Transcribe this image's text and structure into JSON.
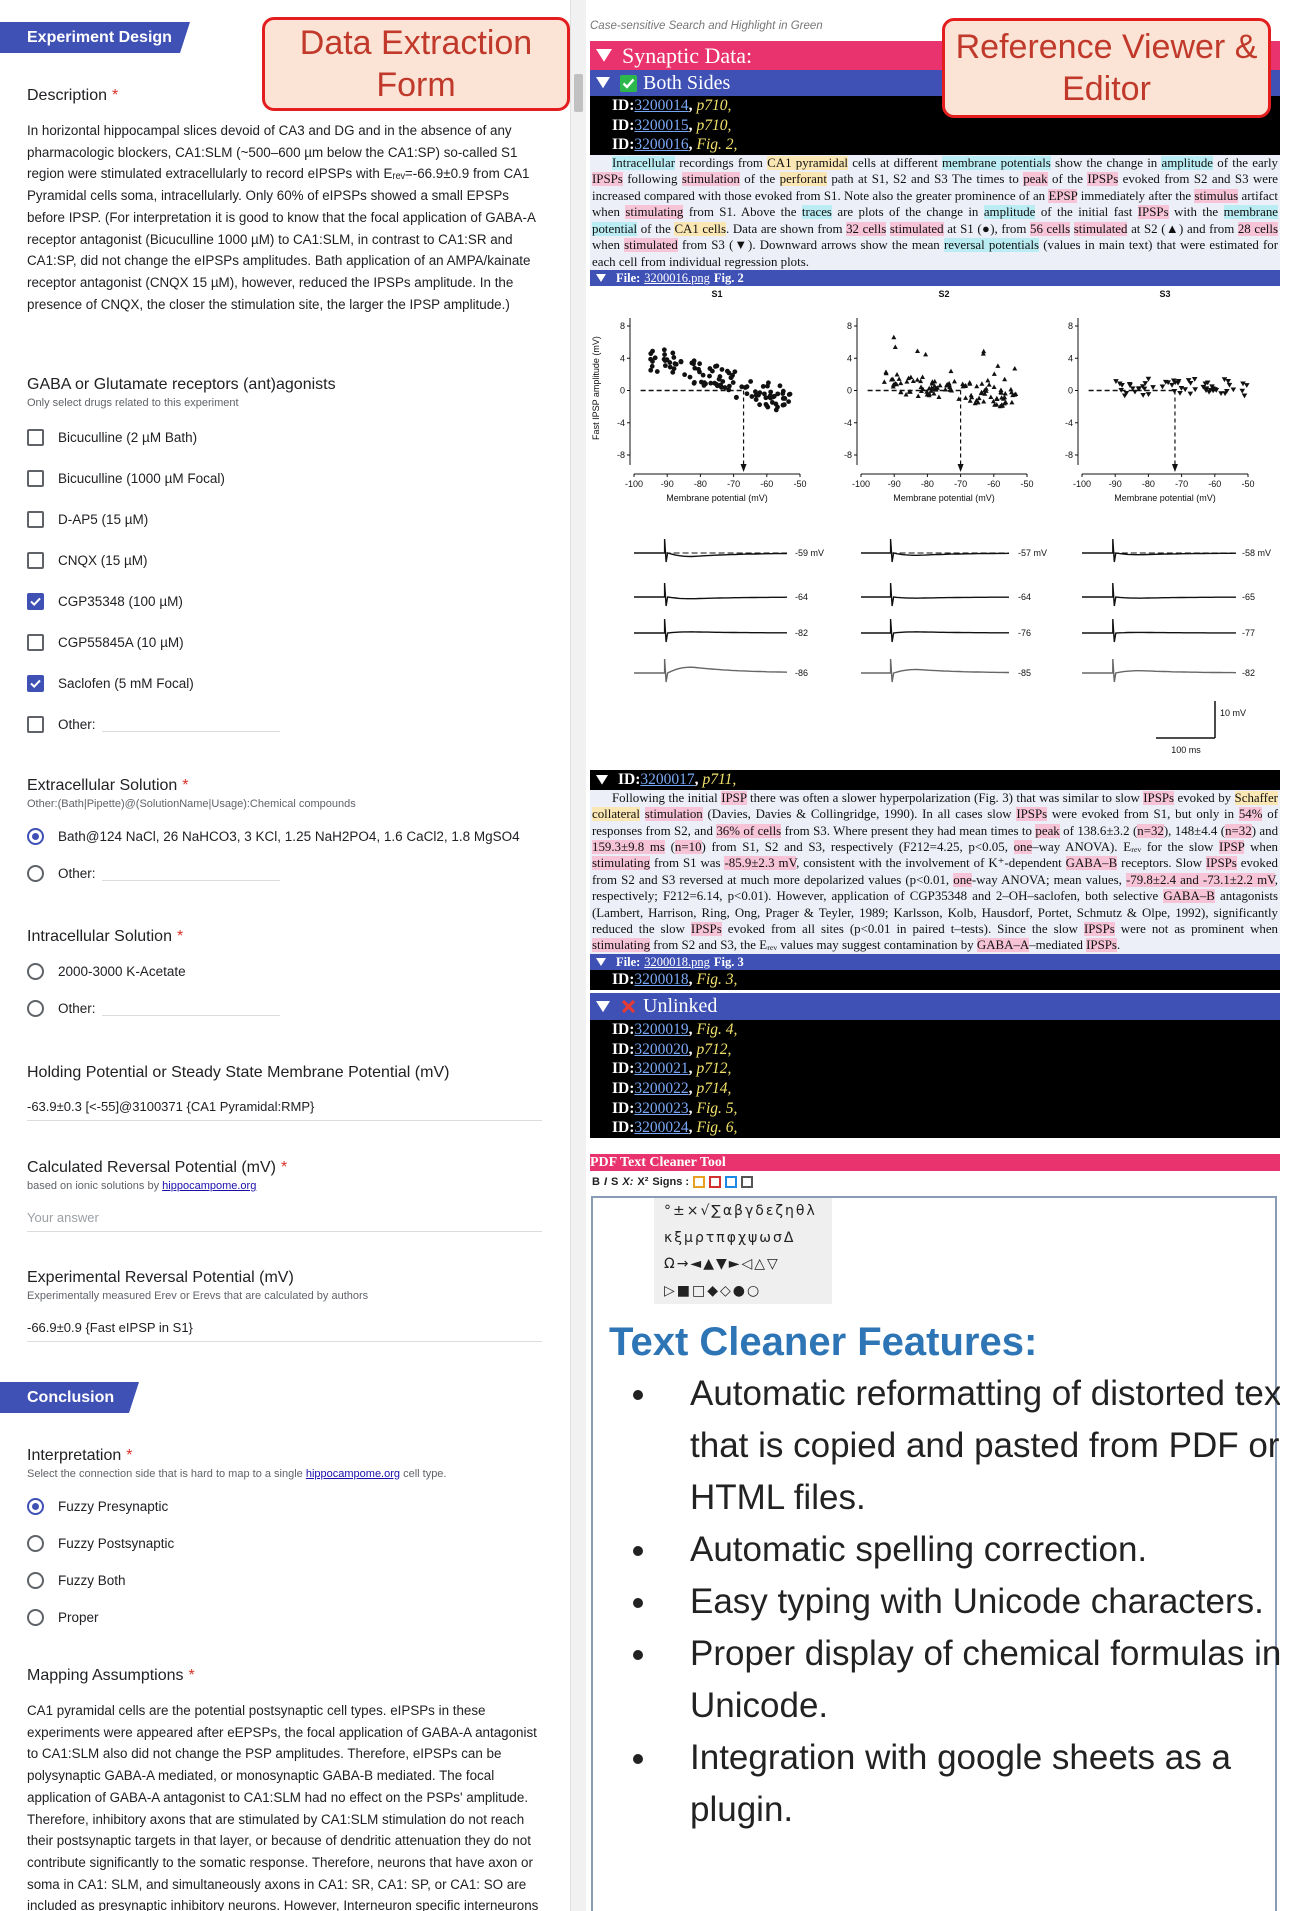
{
  "callouts": {
    "form": "Data Extraction Form",
    "viewer": "Reference Viewer & Editor"
  },
  "form": {
    "sections": [
      {
        "header": "Experiment Design",
        "items": [
          {
            "title": "Description",
            "required": "*",
            "text": "In horizontal hippocampal slices devoid of CA3 and DG and in the absence of any pharmacologic blockers, CA1:SLM (~500–600 µm below the CA1:SP) so-called S1 region were stimulated extracellularly to record eIPSPs with Eᵣₑᵥ=-66.9±0.9 from CA1 Pyramidal cells soma, intracellularly. Only 60% of eIPSPs showed a small EPSPs before IPSP. (For interpretation it is good to know that the focal application of GABA-A receptor antagonist (Bicuculline 1000 µM) to CA1:SLM, in contrast to CA1:SR and CA1:SP, did not change the eIPSPs amplitudes. Bath application of an AMPA/kainate receptor antagonist (CNQX 15 µM), however, reduced the IPSPs amplitude. In the presence of CNQX, the closer the stimulation site, the larger the IPSP amplitude.)"
          },
          {
            "title": "GABA or Glutamate receptors (ant)agonists",
            "hint": [
              "Only select drugs related to this experiment"
            ],
            "control": "checkbox",
            "options": [
              {
                "label": "Bicuculline (2 µM Bath)"
              },
              {
                "label": "Bicuculline (1000 µM Focal)"
              },
              {
                "label": "D-AP5 (15 µM)"
              },
              {
                "label": "CNQX (15 µM)"
              },
              {
                "label": "CGP35348 (100 µM)",
                "checked": true
              },
              {
                "label": "CGP55845A (10 µM)"
              },
              {
                "label": "Saclofen (5 mM Focal)",
                "checked": true
              },
              {
                "label": "Other:",
                "other": true
              }
            ]
          },
          {
            "title": "Extracellular Solution",
            "required": "*",
            "hint": [
              "Other:(Bath|Pipette)@(SolutionName|Usage):Chemical compounds"
            ],
            "control": "radio",
            "options": [
              {
                "label": "Bath@124 NaCl, 26 NaHCO3, 3 KCl, 1.25 NaH2PO4, 1.6 CaCl2, 1.8 MgSO4",
                "checked": true
              },
              {
                "label": "Other:",
                "other": true
              }
            ]
          },
          {
            "title": "Intracellular Solution",
            "required": "*",
            "control": "radio",
            "options": [
              {
                "label": "2000-3000 K-Acetate"
              },
              {
                "label": "Other:",
                "other": true
              }
            ]
          },
          {
            "title": "Holding Potential or Steady State Membrane Potential (mV)",
            "answer": "-63.9±0.3 [<-55]@3100371 {CA1 Pyramidal:RMP}"
          },
          {
            "title": "Calculated Reversal Potential (mV)",
            "required": "*",
            "hint": [
              "based on ionic solutions by ",
              "hippocampome.org"
            ],
            "hint_link": 1,
            "placeholder": "Your answer"
          },
          {
            "title": "Experimental Reversal Potential (mV)",
            "hint": [
              "Experimentally measured Erev or Erevs that are calculated by authors"
            ],
            "answer": "-66.9±0.9 {Fast eIPSP in S1}"
          }
        ]
      },
      {
        "header": "Conclusion",
        "items": [
          {
            "title": "Interpretation",
            "required": "*",
            "hint": [
              "Select the connection side that is hard to map to a single ",
              "hippocampome.org",
              " cell type."
            ],
            "hint_link": 1,
            "control": "radio",
            "options": [
              {
                "label": "Fuzzy Presynaptic",
                "checked": true
              },
              {
                "label": "Fuzzy Postsynaptic"
              },
              {
                "label": "Fuzzy Both"
              },
              {
                "label": "Proper"
              }
            ]
          },
          {
            "title": "Mapping Assumptions",
            "required": "*",
            "text": "CA1 pyramidal cells are the potential postsynaptic cell types. eIPSPs in these experiments were appeared after eEPSPs, the focal application of GABA-A antagonist to CA1:SLM also did not change the PSP amplitudes. Therefore, eIPSPs can be polysynaptic GABA-A mediated, or monosynaptic GABA-B mediated. The focal application of GABA-A antagonist to CA1:SLM had no effect on the PSPs' amplitude. Therefore, inhibitory axons that are stimulated by CA1:SLM stimulation do not reach their postsynaptic targets in that layer, or because of dendritic attenuation they do not contribute significantly to the somatic response. Therefore, neurons that have axon or soma in CA1: SLM, and simultaneously axons in CA1: SR, CA1: SP, or CA1: SO are included as presynaptic inhibitory neurons. However, Interneuron specific interneurons are"
          }
        ]
      }
    ]
  },
  "viewer": {
    "search_label": "Case-sensitive Search and Highlight in Green",
    "id_label": "ID:",
    "id_sep": ",",
    "file_label": "File:",
    "highlight_colors": {
      "b": "#b9ecf3",
      "y": "#fbe7b3",
      "p": "#f6c4d6"
    },
    "synaptic": "Synaptic Data:",
    "both_sides": {
      "title": "Both Sides",
      "rows": [
        {
          "id": "3200014",
          "ref": "p710,"
        },
        {
          "id": "3200015",
          "ref": "p710,"
        },
        {
          "id": "3200016",
          "ref": "Fig. 2,"
        }
      ],
      "paragraph": [
        {
          "t": "Intracellular",
          "hl": "b"
        },
        " recordings from ",
        {
          "t": "CA1 pyramidal",
          "hl": "y"
        },
        " cells at different ",
        {
          "t": "membrane potentials",
          "hl": "b"
        },
        " show the change in ",
        {
          "t": "amplitude",
          "hl": "b"
        },
        " of the early ",
        {
          "t": "IPSPs",
          "hl": "p"
        },
        " following ",
        {
          "t": "stimulation",
          "hl": "p"
        },
        " of the ",
        {
          "t": "perforant",
          "hl": "y"
        },
        " path at S1, S2 and S3 The times to ",
        {
          "t": "peak",
          "hl": "p"
        },
        " of the ",
        {
          "t": "IPSPs",
          "hl": "p"
        },
        " evoked from S2 and S3 were increased compared with those evoked from S1. Note also the greater prominence of an ",
        {
          "t": "EPSP",
          "hl": "p"
        },
        " immediately after the ",
        {
          "t": "stimulus",
          "hl": "p"
        },
        " artifact when ",
        {
          "t": "stimulating",
          "hl": "p"
        },
        " from S1. Above the ",
        {
          "t": "traces",
          "hl": "b"
        },
        " are plots of the change in ",
        {
          "t": "amplitude",
          "hl": "b"
        },
        " of the initial fast ",
        {
          "t": "IPSPs",
          "hl": "p"
        },
        " with the ",
        {
          "t": "membrane potential",
          "hl": "b"
        },
        " of the ",
        {
          "t": "CA1 cells",
          "hl": "y"
        },
        ". Data are shown from ",
        {
          "t": "32 cells",
          "hl": "p"
        },
        " ",
        {
          "t": "stimulated",
          "hl": "p"
        },
        " at S1 (●), from ",
        {
          "t": "56 cells",
          "hl": "p"
        },
        " ",
        {
          "t": "stimulated",
          "hl": "p"
        },
        " at S2 (▲) and from ",
        {
          "t": "28 cells",
          "hl": "p"
        },
        " when ",
        {
          "t": "stimulated",
          "hl": "p"
        },
        " from S3 (▼). Downward arrows show the mean ",
        {
          "t": "reversal potentials",
          "hl": "b"
        },
        " (values in main text) that were estimated for each cell from individual regression plots."
      ],
      "file": {
        "name": "3200016.png",
        "fig": "Fig. 2"
      }
    },
    "figure": {
      "panels": [
        "S1",
        "S2",
        "S3"
      ],
      "ylabel": "Fast IPSP amplitude (mV)",
      "xlabel": "Membrane potential (mV)",
      "xticks": [
        -100,
        -90,
        -80,
        -70,
        -60,
        -50
      ],
      "yticks": [
        8,
        4,
        0,
        -4,
        -8
      ],
      "traces": [
        [
          "-59 mV",
          "-64",
          "-82",
          "-86"
        ],
        [
          "-57 mV",
          "-64",
          "-76",
          "-85"
        ],
        [
          "-58 mV",
          "-65",
          "-77",
          "-82"
        ]
      ],
      "scale_v": "10 mV",
      "scale_t": "100 ms"
    },
    "row17": {
      "id": "3200017",
      "ref": "p711,"
    },
    "paragraph2": [
      "Following the initial ",
      {
        "t": "IPSP",
        "hl": "p"
      },
      " there was often a slower hyperpolarization (Fig. 3) that was similar to slow ",
      {
        "t": "IPSPs",
        "hl": "p"
      },
      " evoked by ",
      {
        "t": "Schaffer collateral",
        "hl": "y"
      },
      " ",
      {
        "t": "stimulation",
        "hl": "p"
      },
      " (Davies, Davies & Collingridge, 1990). In all cases slow ",
      {
        "t": "IPSPs",
        "hl": "p"
      },
      " were evoked from S1, but only in ",
      {
        "t": "54%",
        "hl": "p"
      },
      " of responses from S2, and ",
      {
        "t": "36% of cells",
        "hl": "p"
      },
      " from S3. Where present they had mean times to ",
      {
        "t": "peak",
        "hl": "p"
      },
      " of 138.6±3.2 (",
      {
        "t": "n=32",
        "hl": "p"
      },
      "), 148±4.4 (",
      {
        "t": "n=32",
        "hl": "p"
      },
      ") and ",
      {
        "t": "159.3±9.8 ms",
        "hl": "p"
      },
      " (",
      {
        "t": "n=10",
        "hl": "p"
      },
      ") from S1, S2 and S3, respectively (F212=4.25, p<0.05, ",
      {
        "t": "one",
        "hl": "p"
      },
      "–way ANOVA). Eᵣₑᵥ for the slow ",
      {
        "t": "IPSP",
        "hl": "p"
      },
      " when ",
      {
        "t": "stimulating",
        "hl": "p"
      },
      " from S1 was ",
      {
        "t": "-85.9±2.3 mV",
        "hl": "p"
      },
      ", consistent with the involvement of K⁺-dependent ",
      {
        "t": "GABA–B",
        "hl": "p"
      },
      " receptors. Slow ",
      {
        "t": "IPSPs",
        "hl": "p"
      },
      " evoked from S2 and S3 reversed at much more depolarized values (p<0.01, ",
      {
        "t": "one",
        "hl": "p"
      },
      "-way ANOVA; mean values, ",
      {
        "t": "-79.8±2.4 and -73.1±2.2 mV",
        "hl": "p"
      },
      ", respectively; F212=6.14, p<0.01). However, application of CGP35348 and 2–OH–saclofen, both selective ",
      {
        "t": "GABA–B",
        "hl": "p"
      },
      " antagonists (Lambert, Harrison, Ring, Ong, Prager & Teyler, 1989; Karlsson, Kolb, Hausdorf, Portet, Schmutz & Olpe, 1992), significantly reduced the slow ",
      {
        "t": "IPSPs",
        "hl": "p"
      },
      " evoked from all sites (p<0.01 in paired t–tests). Since the slow ",
      {
        "t": "IPSPs",
        "hl": "p"
      },
      " were not as prominent when ",
      {
        "t": "stimulating",
        "hl": "p"
      },
      " from S2 and S3, the Eᵣₑᵥ values may suggest contamination by ",
      {
        "t": "GABA–A",
        "hl": "p"
      },
      "–mediated ",
      {
        "t": "IPSPs",
        "hl": "p"
      },
      "."
    ],
    "file2": {
      "name": "3200018.png",
      "fig": "Fig. 3"
    },
    "row18": {
      "id": "3200018",
      "ref": "Fig. 3,"
    },
    "unlinked": {
      "title": "Unlinked",
      "rows": [
        {
          "id": "3200019",
          "ref": "Fig. 4,"
        },
        {
          "id": "3200020",
          "ref": "p712,"
        },
        {
          "id": "3200021",
          "ref": "p712,"
        },
        {
          "id": "3200022",
          "ref": "p714,"
        },
        {
          "id": "3200023",
          "ref": "Fig. 5,"
        },
        {
          "id": "3200024",
          "ref": "Fig. 6,"
        }
      ]
    },
    "tool": {
      "title": "PDF Text Cleaner Tool",
      "toolbar": [
        "B",
        "I",
        "S",
        "X:",
        "X²",
        "Signs :"
      ],
      "symbols": [
        "°±×√∑αβγδεζηθλ",
        "κξμρτπφχψωσΔ",
        "Ω→◄▲▼►◁△▽",
        "▷■□◆◇●○"
      ],
      "features_title": "Text Cleaner Features:",
      "features": [
        "Automatic reformatting of distorted text that is copied and pasted from PDF or HTML files.",
        "Automatic spelling correction.",
        "Easy typing with Unicode characters.",
        "Proper display of chemical formulas in Unicode.",
        "Integration with google sheets as a plugin."
      ]
    }
  }
}
